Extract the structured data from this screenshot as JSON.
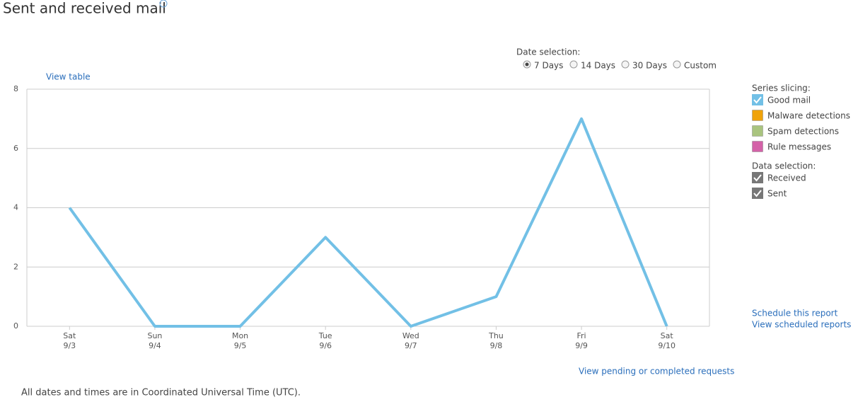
{
  "title": "Sent and received mail",
  "view_table": "View table",
  "date_selection": {
    "label": "Date selection:",
    "options": [
      "7 Days",
      "14 Days",
      "30 Days",
      "Custom"
    ],
    "selected": 0
  },
  "series_slicing": {
    "label": "Series slicing:",
    "others": [
      {
        "name": "Malware detections",
        "color": "#f0a30a"
      },
      {
        "name": "Spam detections",
        "color": "#a9c47f"
      },
      {
        "name": "Rule messages",
        "color": "#d462a8"
      }
    ]
  },
  "data_selection": {
    "label": "Data selection:",
    "items": [
      {
        "name": "Received",
        "checked": true
      },
      {
        "name": "Sent",
        "checked": true
      }
    ]
  },
  "links": [
    "Schedule this report",
    "View scheduled reports",
    "View pending or completed requests"
  ],
  "footer": "All dates and times are in Coordinated Universal Time (UTC).",
  "chart_data": {
    "type": "line",
    "categories": [
      "Sat",
      "Sun",
      "Mon",
      "Tue",
      "Wed",
      "Thu",
      "Fri",
      "Sat"
    ],
    "dates": [
      "9/3",
      "9/4",
      "9/5",
      "9/6",
      "9/7",
      "9/8",
      "9/9",
      "9/10"
    ],
    "series": [
      {
        "name": "Good mail",
        "color": "#72c0e6",
        "checked": true,
        "values": [
          4,
          0,
          0,
          3,
          0,
          1,
          7,
          0
        ]
      }
    ],
    "ylim": [
      0,
      8
    ],
    "yticks": [
      0,
      2,
      4,
      6,
      8
    ],
    "grid": true
  }
}
